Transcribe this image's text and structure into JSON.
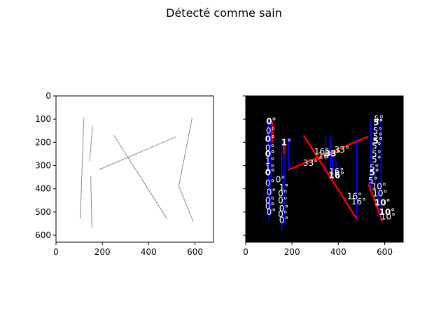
{
  "chart_data": {
    "title": "Détecté comme sain",
    "type": "line",
    "panels": [
      {
        "name": "left-panel",
        "background": "#ffffff",
        "xlim": [
          0,
          680
        ],
        "ylim": [
          630,
          0
        ],
        "xticks": [
          0,
          200,
          400,
          600
        ],
        "yticks": [
          0,
          100,
          200,
          300,
          400,
          500,
          600
        ],
        "line_color": "#8c8c8c",
        "segments": [
          [
            [
              120,
              95
            ],
            [
              105,
              530
            ]
          ],
          [
            [
              158,
              130
            ],
            [
              145,
              280
            ]
          ],
          [
            [
              150,
              345
            ],
            [
              155,
              570
            ]
          ],
          [
            [
              185,
              318
            ],
            [
              520,
              175
            ]
          ],
          [
            [
              250,
              170
            ],
            [
              480,
              530
            ]
          ],
          [
            [
              588,
              93
            ],
            [
              530,
              388
            ]
          ],
          [
            [
              530,
              388
            ],
            [
              592,
              540
            ]
          ]
        ]
      },
      {
        "name": "right-panel",
        "background": "#000000",
        "xlim": [
          0,
          680
        ],
        "ylim": [
          630,
          0
        ],
        "xticks": [
          0,
          200,
          400,
          600
        ],
        "yticks": [
          0,
          100,
          200,
          300,
          400,
          500,
          600
        ],
        "blue_color": "#0000ff",
        "red_color": "#ff0000",
        "label_color": "#ffffff",
        "blue_segments": [
          [
            [
              100,
              108
            ],
            [
              100,
              535
            ]
          ],
          [
            [
              110,
              110
            ],
            [
              110,
              500
            ]
          ],
          [
            [
              155,
              195
            ],
            [
              155,
              580
            ]
          ],
          [
            [
              165,
              205
            ],
            [
              165,
              560
            ]
          ],
          [
            [
              185,
              180
            ],
            [
              185,
              320
            ]
          ],
          [
            [
              345,
              170
            ],
            [
              345,
              315
            ]
          ],
          [
            [
              365,
              170
            ],
            [
              365,
              315
            ]
          ],
          [
            [
              375,
              250
            ],
            [
              375,
              330
            ]
          ],
          [
            [
              390,
              280
            ],
            [
              390,
              345
            ]
          ],
          [
            [
              480,
              175
            ],
            [
              480,
              535
            ]
          ],
          [
            [
              540,
              100
            ],
            [
              540,
              410
            ]
          ],
          [
            [
              560,
              100
            ],
            [
              560,
              390
            ]
          ],
          [
            [
              570,
              390
            ],
            [
              570,
              520
            ]
          ],
          [
            [
              585,
              90
            ],
            [
              585,
              545
            ]
          ]
        ],
        "red_segments": [
          [
            [
              250,
              170
            ],
            [
              480,
              530
            ]
          ],
          [
            [
              185,
              318
            ],
            [
              530,
              175
            ]
          ],
          [
            [
              115,
              110
            ],
            [
              115,
              200
            ]
          ],
          [
            [
              530,
              380
            ],
            [
              590,
              540
            ]
          ],
          [
            [
              165,
              200
            ],
            [
              165,
              250
            ]
          ]
        ],
        "angle_labels": [
          {
            "text": "0°",
            "x": 110,
            "y": 110,
            "bold": true
          },
          {
            "text": "0°",
            "x": 108,
            "y": 150,
            "bold": false
          },
          {
            "text": "0°",
            "x": 105,
            "y": 185,
            "bold": true
          },
          {
            "text": "1°",
            "x": 175,
            "y": 200,
            "bold": true
          },
          {
            "text": "0°",
            "x": 105,
            "y": 225,
            "bold": false
          },
          {
            "text": "0°",
            "x": 105,
            "y": 250,
            "bold": true
          },
          {
            "text": "1°",
            "x": 105,
            "y": 280,
            "bold": false
          },
          {
            "text": "1°",
            "x": 105,
            "y": 310,
            "bold": false
          },
          {
            "text": "0°",
            "x": 105,
            "y": 330,
            "bold": true
          },
          {
            "text": "0°",
            "x": 150,
            "y": 360,
            "bold": false
          },
          {
            "text": "0°",
            "x": 105,
            "y": 375,
            "bold": false
          },
          {
            "text": "1°",
            "x": 165,
            "y": 395,
            "bold": false
          },
          {
            "text": "0°",
            "x": 110,
            "y": 415,
            "bold": false
          },
          {
            "text": "0°",
            "x": 160,
            "y": 420,
            "bold": false
          },
          {
            "text": "0°",
            "x": 105,
            "y": 450,
            "bold": false
          },
          {
            "text": "0°",
            "x": 160,
            "y": 450,
            "bold": false
          },
          {
            "text": "0°",
            "x": 105,
            "y": 475,
            "bold": false
          },
          {
            "text": "0°",
            "x": 165,
            "y": 485,
            "bold": false
          },
          {
            "text": "0°",
            "x": 110,
            "y": 500,
            "bold": false
          },
          {
            "text": "0°",
            "x": 160,
            "y": 510,
            "bold": false
          },
          {
            "text": "0°",
            "x": 165,
            "y": 535,
            "bold": false
          },
          {
            "text": "33°",
            "x": 280,
            "y": 290,
            "bold": false
          },
          {
            "text": "16°",
            "x": 328,
            "y": 240,
            "bold": false
          },
          {
            "text": "16°",
            "x": 345,
            "y": 258,
            "bold": false
          },
          {
            "text": "33°",
            "x": 375,
            "y": 248,
            "bold": true
          },
          {
            "text": "33°",
            "x": 415,
            "y": 232,
            "bold": false
          },
          {
            "text": "16°",
            "x": 392,
            "y": 325,
            "bold": false
          },
          {
            "text": "16°",
            "x": 392,
            "y": 342,
            "bold": true
          },
          {
            "text": "16°",
            "x": 470,
            "y": 432,
            "bold": false
          },
          {
            "text": "16°",
            "x": 488,
            "y": 455,
            "bold": false
          },
          {
            "text": "5°",
            "x": 575,
            "y": 100,
            "bold": false
          },
          {
            "text": "5°",
            "x": 572,
            "y": 115,
            "bold": true
          },
          {
            "text": "5°",
            "x": 570,
            "y": 150,
            "bold": false
          },
          {
            "text": "5°",
            "x": 570,
            "y": 175,
            "bold": false
          },
          {
            "text": "5°",
            "x": 570,
            "y": 195,
            "bold": true
          },
          {
            "text": "5°",
            "x": 565,
            "y": 215,
            "bold": false
          },
          {
            "text": "5°",
            "x": 565,
            "y": 250,
            "bold": false
          },
          {
            "text": "5°",
            "x": 565,
            "y": 275,
            "bold": false
          },
          {
            "text": "5°",
            "x": 555,
            "y": 310,
            "bold": false
          },
          {
            "text": "5°",
            "x": 555,
            "y": 330,
            "bold": true
          },
          {
            "text": "5°",
            "x": 550,
            "y": 365,
            "bold": false
          },
          {
            "text": "10°",
            "x": 575,
            "y": 390,
            "bold": false
          },
          {
            "text": "10°",
            "x": 580,
            "y": 420,
            "bold": false
          },
          {
            "text": "10°",
            "x": 590,
            "y": 460,
            "bold": true
          },
          {
            "text": "10°",
            "x": 610,
            "y": 500,
            "bold": true
          },
          {
            "text": "10°",
            "x": 615,
            "y": 520,
            "bold": false
          }
        ]
      }
    ]
  }
}
